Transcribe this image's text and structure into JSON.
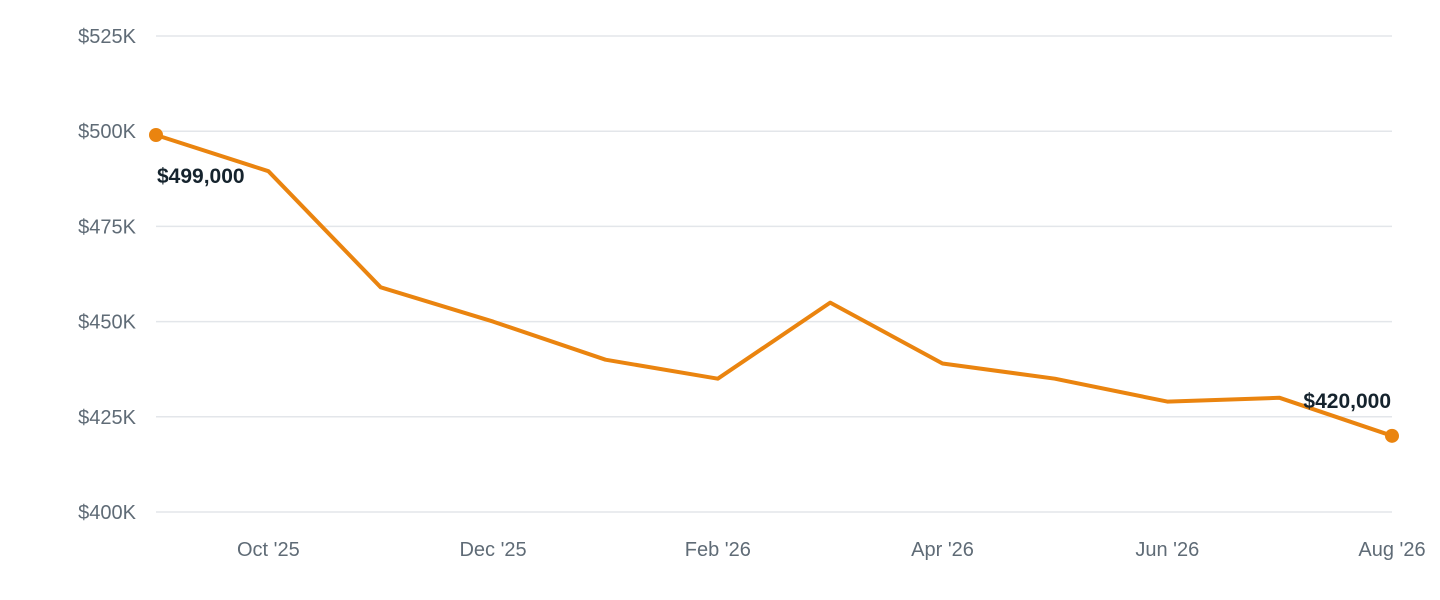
{
  "chart_data": {
    "type": "line",
    "title": "",
    "xlabel": "",
    "ylabel": "",
    "grid": true,
    "y_axis": {
      "min": 400000,
      "max": 525000,
      "ticks": [
        400000,
        425000,
        450000,
        475000,
        500000,
        525000
      ],
      "tick_labels": [
        "$400K",
        "$425K",
        "$450K",
        "$475K",
        "$500K",
        "$525K"
      ]
    },
    "x_axis": {
      "tick_labels": [
        "Oct '25",
        "Dec '25",
        "Feb '26",
        "Apr '26",
        "Jun '26",
        "Aug '26"
      ],
      "tick_dates": [
        "2025-10",
        "2025-12",
        "2026-02",
        "2026-04",
        "2026-06",
        "2026-08"
      ]
    },
    "series": [
      {
        "color": "#ea840f",
        "points": [
          {
            "x": "2025-09",
            "y": 499000
          },
          {
            "x": "2025-10",
            "y": 489500
          },
          {
            "x": "2025-11",
            "y": 459000
          },
          {
            "x": "2025-12",
            "y": 450000
          },
          {
            "x": "2026-01",
            "y": 440000
          },
          {
            "x": "2026-02",
            "y": 435000
          },
          {
            "x": "2026-03",
            "y": 455000
          },
          {
            "x": "2026-04",
            "y": 439000
          },
          {
            "x": "2026-05",
            "y": 435000
          },
          {
            "x": "2026-06",
            "y": 429000
          },
          {
            "x": "2026-07",
            "y": 430000
          },
          {
            "x": "2026-08",
            "y": 420000
          }
        ]
      }
    ],
    "annotations": [
      {
        "x": "2025-09",
        "y": 499000,
        "text": "$499,000"
      },
      {
        "x": "2026-08",
        "y": 420000,
        "text": "$420,000"
      }
    ]
  }
}
